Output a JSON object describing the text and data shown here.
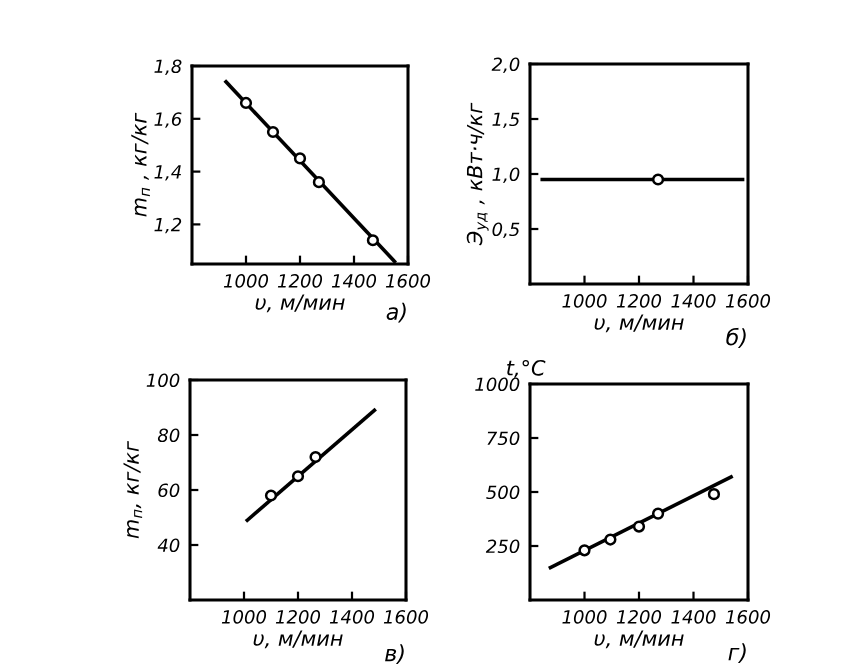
{
  "chart_data": [
    {
      "type": "scatter",
      "xlabel": "υ, м/мин",
      "ylabel": "m$_{п}$ , кг/кг",
      "annotations": [
        "а)"
      ],
      "xlim": [
        800,
        1600
      ],
      "ylim": [
        1.05,
        1.8
      ],
      "xticks": [
        1000,
        1200,
        1400,
        1600
      ],
      "yticks": [
        {
          "value": 1.2,
          "label": "1,2"
        },
        {
          "value": 1.4,
          "label": "1,4"
        },
        {
          "value": 1.6,
          "label": "1,6"
        },
        {
          "value": 1.8,
          "label": "1,8"
        }
      ],
      "grid": false,
      "legend": false,
      "series": [
        {
          "type": "line",
          "color": "#000000",
          "x": [
            926,
            1550
          ],
          "values": [
            1.74,
            1.06
          ],
          "marker": "none",
          "line_style": "solid"
        },
        {
          "color": "#000000",
          "x": [
            1000,
            1100,
            1200,
            1270,
            1470
          ],
          "values": [
            1.66,
            1.55,
            1.45,
            1.36,
            1.14
          ],
          "marker": "circle"
        }
      ]
    },
    {
      "type": "scatter",
      "xlabel": "υ, м/мин",
      "ylabel": "Э$_{уд}$ , кВт·ч/кг",
      "annotations": [
        "б)"
      ],
      "xlim": [
        800,
        1600
      ],
      "ylim": [
        0,
        2.0
      ],
      "xticks": [
        1000,
        1200,
        1400,
        1600
      ],
      "yticks": [
        {
          "value": 0.5,
          "label": "0,5"
        },
        {
          "value": 1.0,
          "label": "1,0"
        },
        {
          "value": 1.5,
          "label": "1,5"
        },
        {
          "value": 2.0,
          "label": "2,0"
        }
      ],
      "grid": false,
      "legend": false,
      "series": [
        {
          "type": "line",
          "color": "#000000",
          "x": [
            845,
            1580
          ],
          "values": [
            0.95,
            0.95
          ],
          "marker": "none",
          "line_style": "solid"
        },
        {
          "color": "#000000",
          "x": [
            1270
          ],
          "values": [
            0.95
          ],
          "marker": "circle"
        }
      ]
    },
    {
      "type": "scatter",
      "xlabel": "υ, м/мин",
      "ylabel": "m$_{п}$, кг/кг",
      "annotations": [
        "в)"
      ],
      "xlim": [
        800,
        1600
      ],
      "ylim": [
        20,
        100
      ],
      "xticks": [
        1000,
        1200,
        1400,
        1600
      ],
      "yticks": [
        40,
        60,
        80,
        100
      ],
      "grid": false,
      "legend": false,
      "series": [
        {
          "type": "line",
          "color": "#000000",
          "x": [
            1012,
            1483
          ],
          "values": [
            49,
            89
          ],
          "marker": "none",
          "line_style": "solid"
        },
        {
          "color": "#000000",
          "x": [
            1100,
            1200,
            1265
          ],
          "values": [
            58,
            65,
            72
          ],
          "marker": "circle"
        }
      ]
    },
    {
      "type": "scatter",
      "xlabel": "υ, м/мин",
      "ylabel": "t,°C",
      "annotations": [
        "г)"
      ],
      "xlim": [
        800,
        1600
      ],
      "ylim": [
        0,
        1000
      ],
      "xticks": [
        1000,
        1200,
        1400,
        1600
      ],
      "yticks": [
        250,
        500,
        750,
        1000
      ],
      "grid": false,
      "legend": false,
      "series": [
        {
          "type": "line",
          "color": "#000000",
          "x": [
            875,
            1538
          ],
          "values": [
            150,
            570
          ],
          "marker": "none",
          "line_style": "solid"
        },
        {
          "color": "#000000",
          "x": [
            1000,
            1095,
            1200,
            1270,
            1475
          ],
          "values": [
            230,
            280,
            340,
            400,
            490
          ],
          "marker": "circle"
        }
      ]
    }
  ]
}
